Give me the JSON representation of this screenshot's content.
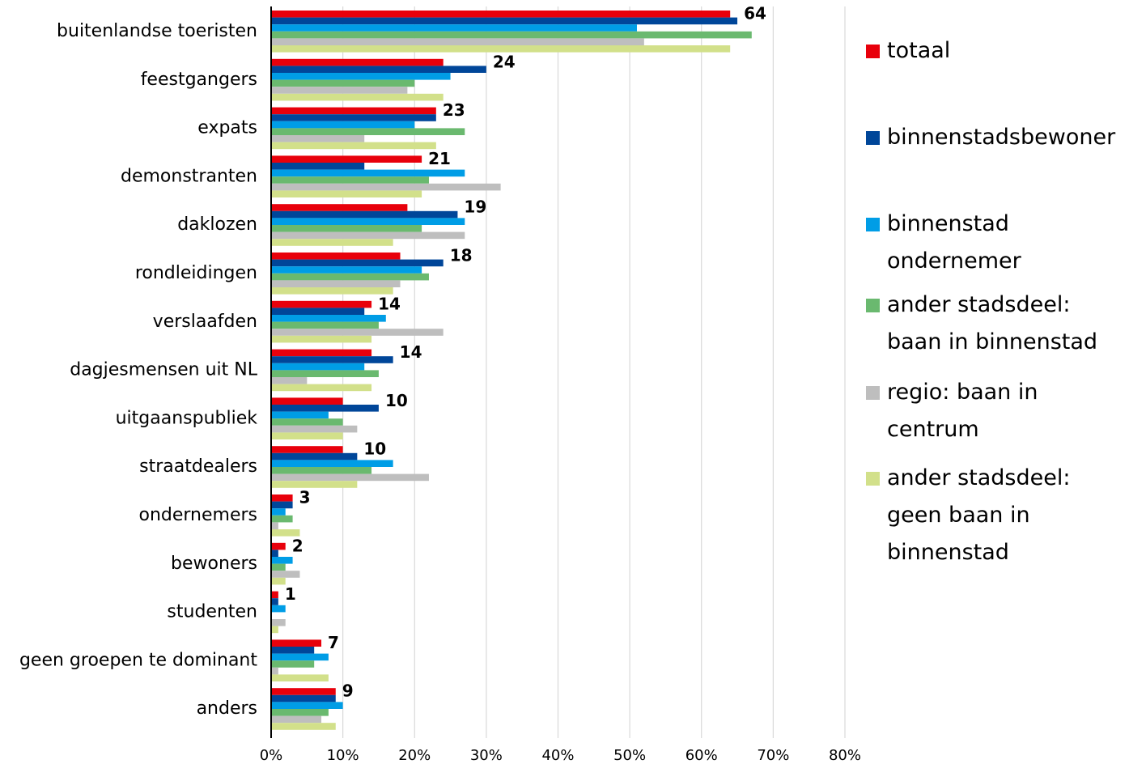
{
  "chart_data": {
    "type": "bar",
    "orientation": "horizontal",
    "categories": [
      "buitenlandse toeristen",
      "feestgangers",
      "expats",
      "demonstranten",
      "daklozen",
      "rondleidingen",
      "verslaafden",
      "dagjesmensen uit NL",
      "uitgaanspubliek",
      "straatdealers",
      "ondernemers",
      "bewoners",
      "studenten",
      "geen groepen te dominant",
      "anders"
    ],
    "series": [
      {
        "name": "totaal",
        "color": "#e8000b",
        "values": [
          64,
          24,
          23,
          21,
          19,
          18,
          14,
          14,
          10,
          10,
          3,
          2,
          1,
          7,
          9
        ]
      },
      {
        "name": "binnenstadsbewoner",
        "color": "#004699",
        "values": [
          65,
          30,
          23,
          13,
          26,
          24,
          13,
          17,
          15,
          12,
          3,
          1,
          1,
          6,
          9
        ]
      },
      {
        "name": "binnenstad ondernemer",
        "color": "#009de6",
        "values": [
          51,
          25,
          20,
          27,
          27,
          21,
          16,
          13,
          8,
          17,
          2,
          3,
          2,
          8,
          10
        ]
      },
      {
        "name": "ander stadsdeel: baan in binnenstad",
        "color": "#6ab96f",
        "values": [
          67,
          20,
          27,
          22,
          21,
          22,
          15,
          15,
          10,
          14,
          3,
          2,
          0,
          6,
          8
        ]
      },
      {
        "name": "regio: baan in centrum",
        "color": "#bebebe",
        "values": [
          52,
          19,
          13,
          32,
          27,
          18,
          24,
          5,
          12,
          22,
          1,
          4,
          2,
          1,
          7
        ]
      },
      {
        "name": "ander stadsdeel: geen baan in binnenstad",
        "color": "#d2e08a",
        "values": [
          64,
          24,
          23,
          21,
          17,
          17,
          14,
          14,
          10,
          12,
          4,
          2,
          1,
          8,
          9
        ]
      }
    ],
    "xlim": [
      0,
      80
    ],
    "xticks": [
      {
        "value": 0,
        "label": "0%"
      },
      {
        "value": 10,
        "label": "10%"
      },
      {
        "value": 20,
        "label": "20%"
      },
      {
        "value": 30,
        "label": "30%"
      },
      {
        "value": 40,
        "label": "40%"
      },
      {
        "value": 50,
        "label": "50%"
      },
      {
        "value": 60,
        "label": "60%"
      },
      {
        "value": 70,
        "label": "70%"
      },
      {
        "value": 80,
        "label": "80%"
      }
    ],
    "grid": true,
    "legend": "right",
    "data_labels_series": 0
  }
}
